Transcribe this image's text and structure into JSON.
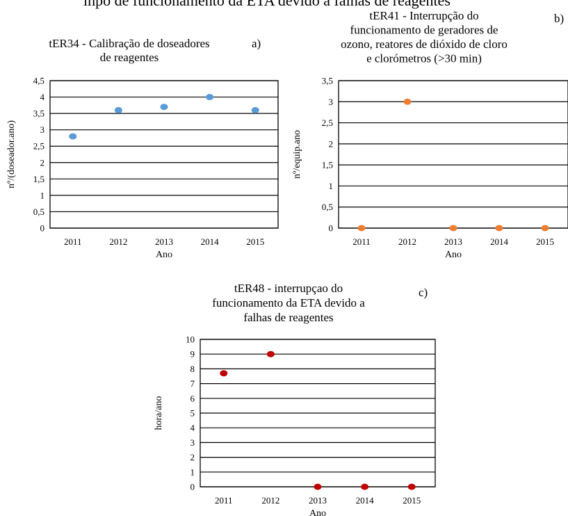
{
  "page": {
    "top_clipped_text": "inpo de funcionamento da ETA devido a falhas de reagentes"
  },
  "chart_data": [
    {
      "id": "a",
      "type": "scatter",
      "panel_label": "a)",
      "title": "tER34 - Calibração de doseadores de reagentes",
      "title_lines": [
        "tER34 - Calibração de doseadores",
        "de reagentes"
      ],
      "xlabel": "Ano",
      "ylabel": "nº/(doseador.ano)",
      "categories": [
        "2011",
        "2012",
        "2013",
        "2014",
        "2015"
      ],
      "values": [
        2.8,
        3.6,
        3.7,
        4.0,
        3.6
      ],
      "ylim": [
        0,
        4.5
      ],
      "yticks": [
        "0",
        "0,5",
        "1",
        "1,5",
        "2",
        "2,5",
        "3",
        "3,5",
        "4",
        "4,5"
      ],
      "grid": true,
      "legend": "none",
      "color": "#5b9bd5"
    },
    {
      "id": "b",
      "type": "scatter",
      "panel_label": "b)",
      "title": "tER41 - Interrupção do funcionamento de geradores de ozono, reatores de dióxido de cloro e clorómetros (>30 min)",
      "title_lines": [
        "tER41 - Interrupção do",
        "funcionamento de geradores de",
        "ozono, reatores de dióxido de cloro",
        "e clorómetros (>30 min)"
      ],
      "xlabel": "Ano",
      "ylabel": "nº/equip.ano",
      "categories": [
        "2011",
        "2012",
        "2013",
        "2014",
        "2015"
      ],
      "values": [
        0,
        3,
        0,
        0,
        0
      ],
      "ylim": [
        0,
        3.5
      ],
      "yticks": [
        "0",
        "0,5",
        "1",
        "1,5",
        "2",
        "2,5",
        "3",
        "3,5"
      ],
      "grid": true,
      "legend": "none",
      "color": "#ed7d31"
    },
    {
      "id": "c",
      "type": "scatter",
      "panel_label": "c)",
      "title": "tER48 - interrupçao do funcionamento da ETA devido a falhas de reagentes",
      "title_lines": [
        "tER48 - interrupçao do",
        "funcionamento da ETA devido a",
        "falhas de reagentes"
      ],
      "xlabel": "Ano",
      "ylabel": "hora/ano",
      "categories": [
        "2011",
        "2012",
        "2013",
        "2014",
        "2015"
      ],
      "values": [
        7.7,
        9,
        0,
        0,
        0
      ],
      "ylim": [
        0,
        10
      ],
      "yticks": [
        "0",
        "1",
        "2",
        "3",
        "4",
        "5",
        "6",
        "7",
        "8",
        "9",
        "10"
      ],
      "grid": true,
      "legend": "none",
      "color": "#c00000"
    }
  ]
}
